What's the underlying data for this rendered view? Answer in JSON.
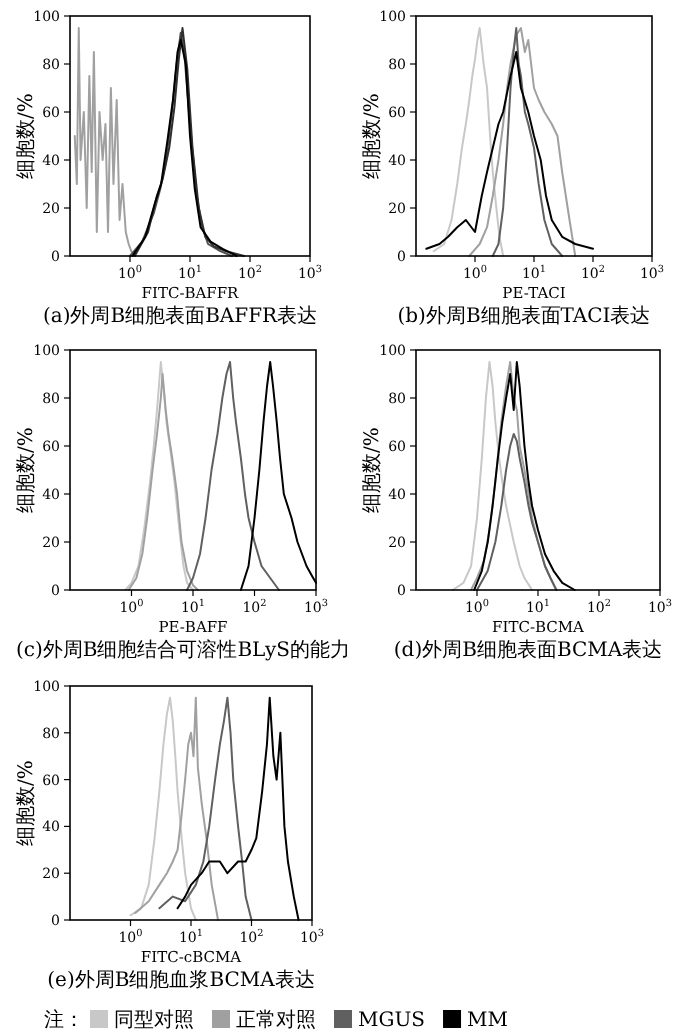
{
  "chart_data": [
    {
      "type": "line",
      "log": "x",
      "xlabel": "FITC-BAFFR",
      "ylabel": "细胞数/%",
      "annotations": [
        "(a)外周B细胞表面BAFFR表达"
      ],
      "xlim": [
        0.1,
        1000
      ],
      "ylim": [
        0,
        100
      ],
      "xticks": [
        {
          "value": 1,
          "label": "10$^{0}$"
        },
        {
          "value": 10,
          "label": "10$^{1}$"
        },
        {
          "value": 100,
          "label": "10$^{2}$"
        },
        {
          "value": 1000,
          "label": "10$^{3}$"
        }
      ],
      "yticks": [
        0,
        20,
        40,
        60,
        80,
        100
      ],
      "series": [
        {
          "color": "#a0a0a0",
          "x": [
            0.12,
            0.13,
            0.14,
            0.15,
            0.17,
            0.19,
            0.21,
            0.23,
            0.25,
            0.28,
            0.31,
            0.35,
            0.39,
            0.43,
            0.48,
            0.53,
            0.6,
            0.67,
            0.75,
            0.85,
            0.95,
            1.05,
            1.2
          ],
          "values": [
            50,
            30,
            95,
            40,
            60,
            20,
            75,
            35,
            85,
            10,
            60,
            40,
            55,
            10,
            70,
            30,
            65,
            15,
            30,
            10,
            5,
            2,
            0
          ]
        },
        {
          "color": "#505050",
          "x": [
            1,
            1.6,
            2.5,
            3.2,
            4,
            5,
            6,
            7,
            8,
            10,
            13,
            16,
            20,
            32,
            50
          ],
          "values": [
            0,
            6,
            18,
            28,
            40,
            60,
            80,
            93,
            85,
            55,
            25,
            12,
            5,
            2,
            0
          ]
        },
        {
          "color": "#303030",
          "x": [
            1.2,
            2,
            2.8,
            3.5,
            4.5,
            5.5,
            6.5,
            7.5,
            9,
            11,
            14,
            18,
            25,
            40,
            80
          ],
          "values": [
            0,
            10,
            25,
            32,
            45,
            62,
            82,
            95,
            78,
            45,
            20,
            8,
            4,
            2,
            0
          ]
        },
        {
          "color": "#000000",
          "x": [
            1.1,
            1.8,
            2.6,
            3.3,
            4.2,
            5.2,
            6.2,
            7,
            8.5,
            10,
            12,
            15,
            22,
            35,
            60
          ],
          "values": [
            0,
            8,
            22,
            30,
            48,
            65,
            85,
            90,
            80,
            50,
            28,
            12,
            6,
            3,
            0
          ]
        }
      ]
    },
    {
      "type": "line",
      "log": "x",
      "xlabel": "PE-TACI",
      "ylabel": "细胞数/%",
      "annotations": [
        "(b)外周B细胞表面TACI表达"
      ],
      "xlim": [
        0.1,
        1000
      ],
      "ylim": [
        0,
        100
      ],
      "xticks": [
        {
          "value": 1,
          "label": "10$^{0}$"
        },
        {
          "value": 10,
          "label": "10$^{1}$"
        },
        {
          "value": 100,
          "label": "10$^{2}$"
        },
        {
          "value": 1000,
          "label": "10$^{3}$"
        }
      ],
      "yticks": [
        0,
        20,
        40,
        60,
        80,
        100
      ],
      "series": [
        {
          "color": "#c8c8c8",
          "x": [
            0.2,
            0.3,
            0.4,
            0.5,
            0.6,
            0.7,
            0.8,
            0.9,
            1.0,
            1.1,
            1.2,
            1.4,
            1.6,
            1.8,
            2.0,
            2.3,
            2.6,
            3.0
          ],
          "values": [
            2,
            5,
            15,
            30,
            45,
            55,
            65,
            75,
            82,
            90,
            95,
            80,
            70,
            50,
            35,
            20,
            8,
            0
          ]
        },
        {
          "color": "#a0a0a0",
          "x": [
            0.8,
            1.2,
            1.6,
            2,
            2.5,
            3,
            3.5,
            4,
            5,
            6,
            7,
            8,
            10,
            12,
            15,
            20,
            25,
            30,
            40,
            50
          ],
          "values": [
            0,
            5,
            12,
            25,
            40,
            55,
            70,
            80,
            92,
            95,
            85,
            90,
            70,
            65,
            60,
            55,
            50,
            35,
            15,
            0
          ]
        },
        {
          "color": "#606060",
          "x": [
            2,
            2.5,
            3,
            3.5,
            4,
            4.5,
            5,
            5.5,
            6,
            7,
            8,
            10,
            12,
            15,
            20,
            30
          ],
          "values": [
            0,
            5,
            20,
            45,
            70,
            85,
            95,
            80,
            75,
            60,
            55,
            45,
            30,
            15,
            5,
            0
          ]
        },
        {
          "color": "#000000",
          "x": [
            0.15,
            0.25,
            0.35,
            0.5,
            0.7,
            1,
            1.3,
            1.6,
            2,
            2.5,
            3,
            4,
            5,
            6,
            8,
            10,
            13,
            16,
            20,
            30,
            50,
            100
          ],
          "values": [
            3,
            5,
            8,
            12,
            15,
            10,
            25,
            35,
            45,
            55,
            60,
            75,
            85,
            70,
            60,
            50,
            40,
            25,
            15,
            8,
            5,
            3
          ]
        }
      ]
    },
    {
      "type": "line",
      "log": "x",
      "xlabel": "PE-BAFF",
      "ylabel": "细胞数/%",
      "annotations": [
        "(c)外周B细胞结合可溶性BLyS的能力"
      ],
      "xlim": [
        0.1,
        1000
      ],
      "ylim": [
        0,
        100
      ],
      "xticks": [
        {
          "value": 1,
          "label": "10$^{0}$"
        },
        {
          "value": 10,
          "label": "10$^{1}$"
        },
        {
          "value": 100,
          "label": "10$^{2}$"
        },
        {
          "value": 1000,
          "label": "10$^{3}$"
        }
      ],
      "yticks": [
        0,
        20,
        40,
        60,
        80,
        100
      ],
      "series": [
        {
          "color": "#c8c8c8",
          "x": [
            0.8,
            1,
            1.3,
            1.6,
            2,
            2.3,
            2.6,
            3,
            3.3,
            3.7,
            4.2,
            5,
            6,
            7,
            8,
            10
          ],
          "values": [
            0,
            3,
            10,
            25,
            45,
            60,
            75,
            95,
            85,
            70,
            60,
            45,
            25,
            10,
            3,
            0
          ]
        },
        {
          "color": "#a0a0a0",
          "x": [
            0.9,
            1.2,
            1.5,
            1.8,
            2.2,
            2.6,
            3,
            3.2,
            3.6,
            4,
            4.6,
            5.5,
            6.5,
            8,
            10,
            12
          ],
          "values": [
            0,
            5,
            15,
            30,
            50,
            65,
            80,
            90,
            75,
            65,
            55,
            40,
            20,
            8,
            2,
            0
          ]
        },
        {
          "color": "#606060",
          "x": [
            8,
            10,
            13,
            16,
            20,
            25,
            30,
            35,
            40,
            45,
            50,
            60,
            70,
            80,
            100,
            130,
            180,
            250
          ],
          "values": [
            0,
            5,
            15,
            30,
            50,
            65,
            80,
            90,
            95,
            80,
            70,
            55,
            40,
            30,
            20,
            10,
            5,
            0
          ]
        },
        {
          "color": "#000000",
          "x": [
            60,
            80,
            100,
            120,
            140,
            160,
            180,
            200,
            230,
            260,
            300,
            400,
            500,
            700,
            900,
            1000
          ],
          "values": [
            0,
            10,
            30,
            50,
            70,
            85,
            95,
            85,
            70,
            55,
            40,
            30,
            20,
            10,
            5,
            3
          ]
        }
      ]
    },
    {
      "type": "line",
      "log": "x",
      "xlabel": "FITC-BCMA",
      "ylabel": "细胞数/%",
      "annotations": [
        "(d)外周B细胞表面BCMA表达"
      ],
      "xlim": [
        0.1,
        1000
      ],
      "ylim": [
        0,
        100
      ],
      "xticks": [
        {
          "value": 1,
          "label": "10$^{0}$"
        },
        {
          "value": 10,
          "label": "10$^{1}$"
        },
        {
          "value": 100,
          "label": "10$^{2}$"
        },
        {
          "value": 1000,
          "label": "10$^{3}$"
        }
      ],
      "yticks": [
        0,
        20,
        40,
        60,
        80,
        100
      ],
      "series": [
        {
          "color": "#c8c8c8",
          "x": [
            0.4,
            0.6,
            0.8,
            1,
            1.2,
            1.4,
            1.6,
            1.8,
            2,
            2.3,
            2.6,
            3,
            4,
            5,
            6,
            8
          ],
          "values": [
            0,
            3,
            10,
            30,
            55,
            80,
            95,
            85,
            70,
            55,
            45,
            35,
            20,
            10,
            5,
            0
          ]
        },
        {
          "color": "#a0a0a0",
          "x": [
            0.8,
            1,
            1.3,
            1.6,
            2,
            2.5,
            3,
            3.5,
            4,
            4.5,
            5,
            6,
            7,
            8,
            10,
            13,
            16,
            20
          ],
          "values": [
            0,
            5,
            12,
            25,
            45,
            70,
            85,
            95,
            80,
            75,
            60,
            50,
            40,
            30,
            20,
            10,
            5,
            0
          ]
        },
        {
          "color": "#606060",
          "x": [
            1,
            1.5,
            2,
            2.5,
            3,
            3.5,
            4,
            4.5,
            5,
            6,
            7,
            8,
            10,
            13,
            16,
            20
          ],
          "values": [
            0,
            8,
            20,
            35,
            50,
            60,
            65,
            62,
            55,
            45,
            35,
            28,
            20,
            10,
            5,
            0
          ]
        },
        {
          "color": "#000000",
          "x": [
            0.9,
            1.2,
            1.5,
            1.8,
            2.2,
            2.6,
            3,
            3.5,
            4,
            4.5,
            5,
            6,
            7,
            8,
            10,
            13,
            18,
            25,
            40
          ],
          "values": [
            0,
            8,
            20,
            35,
            55,
            70,
            80,
            90,
            75,
            95,
            85,
            60,
            45,
            35,
            25,
            15,
            8,
            3,
            0
          ]
        }
      ]
    },
    {
      "type": "line",
      "log": "x",
      "xlabel": "FITC-cBCMA",
      "ylabel": "细胞数/%",
      "annotations": [
        "(e)外周B细胞血浆BCMA表达"
      ],
      "legend": "bottom",
      "legend_title": "注：",
      "xlim": [
        0.1,
        1000
      ],
      "ylim": [
        0,
        100
      ],
      "xticks": [
        {
          "value": 1,
          "label": "10$^{0}$"
        },
        {
          "value": 10,
          "label": "10$^{1}$"
        },
        {
          "value": 100,
          "label": "10$^{2}$"
        },
        {
          "value": 1000,
          "label": "10$^{3}$"
        }
      ],
      "yticks": [
        0,
        20,
        40,
        60,
        80,
        100
      ],
      "series": [
        {
          "name": "同型对照",
          "color": "#c8c8c8",
          "x": [
            1,
            1.5,
            2,
            2.5,
            3,
            3.5,
            4,
            4.5,
            5,
            5.5,
            6,
            7,
            8,
            10,
            12
          ],
          "values": [
            2,
            5,
            15,
            35,
            55,
            75,
            88,
            95,
            85,
            70,
            55,
            35,
            20,
            5,
            0
          ]
        },
        {
          "name": "正常对照",
          "color": "#a0a0a0",
          "x": [
            1.2,
            2,
            3,
            4,
            5,
            6,
            7,
            8,
            9,
            10,
            11,
            12,
            13,
            15,
            18,
            22,
            28
          ],
          "values": [
            3,
            8,
            15,
            20,
            25,
            30,
            45,
            60,
            75,
            80,
            70,
            95,
            65,
            50,
            35,
            15,
            0
          ]
        },
        {
          "name": "MGUS",
          "color": "#606060",
          "x": [
            3,
            5,
            8,
            12,
            16,
            20,
            25,
            30,
            35,
            40,
            45,
            50,
            60,
            70,
            80,
            100
          ],
          "values": [
            5,
            10,
            8,
            15,
            25,
            40,
            60,
            75,
            85,
            95,
            80,
            60,
            40,
            25,
            10,
            0
          ]
        },
        {
          "name": "MM",
          "color": "#000000",
          "x": [
            6,
            8,
            10,
            15,
            20,
            30,
            40,
            60,
            80,
            100,
            120,
            150,
            180,
            200,
            230,
            260,
            300,
            350,
            400,
            500,
            600
          ],
          "values": [
            5,
            10,
            15,
            20,
            25,
            25,
            20,
            25,
            25,
            30,
            35,
            55,
            75,
            95,
            70,
            60,
            80,
            40,
            25,
            10,
            0
          ]
        }
      ]
    }
  ]
}
